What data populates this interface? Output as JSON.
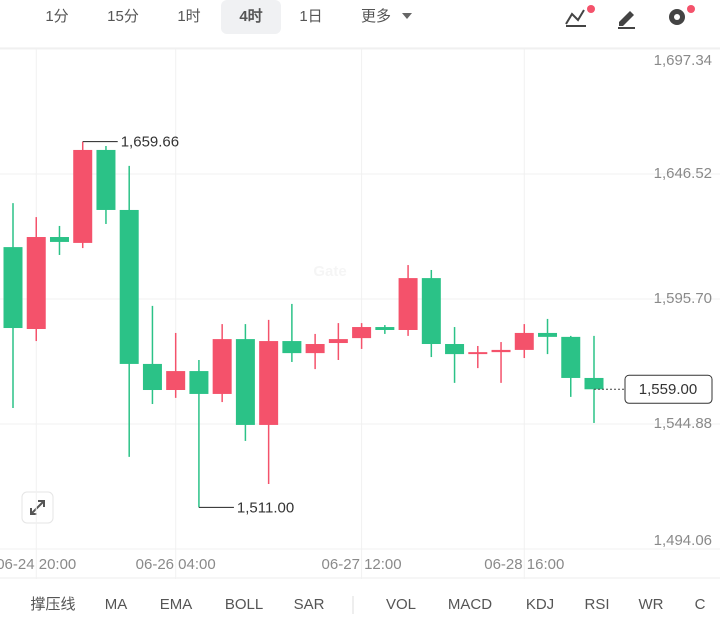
{
  "toolbar": {
    "intervals": [
      "1分",
      "15分",
      "1时",
      "4时",
      "1日",
      "更多"
    ],
    "selected": "4时"
  },
  "chart_data": {
    "type": "candlestick",
    "watermark": "Gate",
    "categories": [
      null,
      "06-24 20:00",
      null,
      null,
      null,
      null,
      null,
      "06-26 04:00",
      null,
      null,
      null,
      null,
      null,
      null,
      null,
      "06-27 12:00",
      null,
      null,
      null,
      null,
      null,
      null,
      "06-28 16:00",
      null,
      null,
      null
    ],
    "open": [
      1616.8,
      1583.5,
      1620.9,
      1618.5,
      1656.3,
      1631.9,
      1569.3,
      1558.7,
      1566.4,
      1557.1,
      1579.4,
      1544.5,
      1578.6,
      1573.7,
      1577.8,
      1579.8,
      1584.3,
      1583.1,
      1604.2,
      1577.4,
      1573.3,
      1574.1,
      1575.0,
      1581.9,
      1580.3,
      1563.6
    ],
    "high": [
      1634.7,
      1629.0,
      1625.4,
      1659.66,
      1657.9,
      1649.8,
      1592.9,
      1581.9,
      1570.9,
      1585.5,
      1585.5,
      1587.2,
      1593.7,
      1581.5,
      1585.9,
      1585.9,
      1585.1,
      1609.5,
      1607.5,
      1584.3,
      1576.6,
      1578.2,
      1585.5,
      1587.6,
      1580.7,
      1580.7
    ],
    "low": [
      1551.4,
      1578.6,
      1613.6,
      1616.4,
      1626.2,
      1531.5,
      1553.0,
      1555.5,
      1511.0,
      1553.8,
      1538.0,
      1520.5,
      1570.1,
      1567.2,
      1570.9,
      1575.4,
      1581.5,
      1580.7,
      1572.1,
      1561.6,
      1567.6,
      1561.6,
      1571.7,
      1573.3,
      1555.9,
      1545.3
    ],
    "close": [
      1583.9,
      1620.9,
      1618.9,
      1656.3,
      1631.9,
      1569.3,
      1558.7,
      1566.4,
      1557.1,
      1579.4,
      1544.5,
      1578.6,
      1573.7,
      1577.4,
      1579.4,
      1584.3,
      1583.1,
      1604.2,
      1577.4,
      1573.3,
      1574.1,
      1575.0,
      1581.9,
      1580.3,
      1563.6,
      1559.0
    ],
    "up_color": "#f4526b",
    "down_color": "#2bc287",
    "ylim": [
      1494.06,
      1697.34
    ],
    "yticks": [
      {
        "value": 1494.06,
        "label": "1,494.06"
      },
      {
        "value": 1544.88,
        "label": "1,544.88"
      },
      {
        "value": 1595.7,
        "label": "1,595.70"
      },
      {
        "value": 1646.52,
        "label": "1,646.52"
      },
      {
        "value": 1697.34,
        "label": "1,697.34"
      }
    ],
    "grid": true,
    "high_label": {
      "value": 1659.66,
      "label": "1,659.66"
    },
    "low_label": {
      "value": 1511.0,
      "label": "1,511.00"
    },
    "last_price": {
      "value": 1559.0,
      "label": "1,559.00"
    }
  },
  "indicators": [
    "撑压线",
    "MA",
    "EMA",
    "BOLL",
    "SAR",
    "VOL",
    "MACD",
    "KDJ",
    "RSI",
    "WR",
    "C"
  ]
}
